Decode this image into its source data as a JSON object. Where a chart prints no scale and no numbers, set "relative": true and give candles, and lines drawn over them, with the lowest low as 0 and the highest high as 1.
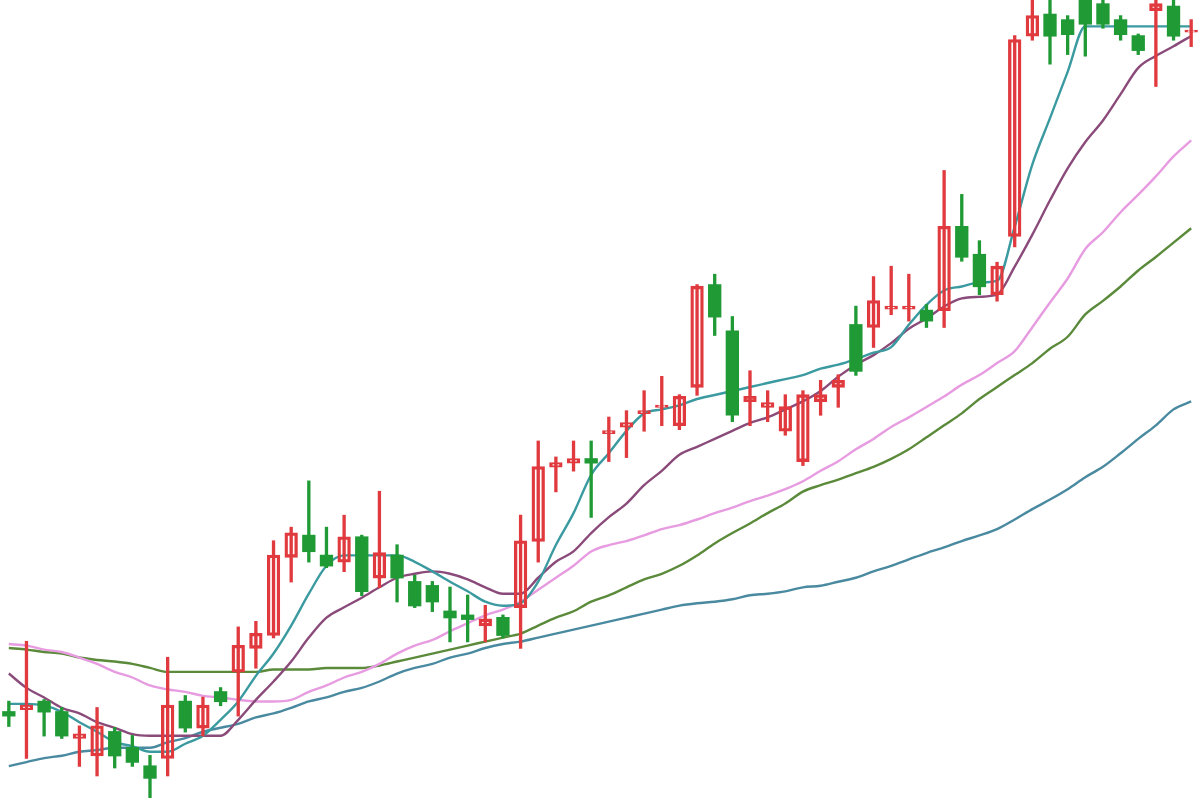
{
  "chart_data": {
    "type": "candlestick",
    "relative": true,
    "categories": [
      null,
      null,
      null,
      null,
      null,
      null,
      null,
      null,
      null,
      null,
      null,
      null,
      null,
      null,
      null,
      null,
      null,
      null,
      null,
      null,
      null,
      null,
      null,
      null,
      null,
      null,
      null,
      null,
      null,
      null,
      null,
      null,
      null,
      null,
      null,
      null,
      null,
      null,
      null,
      null,
      null,
      null,
      null,
      null,
      null,
      null,
      null,
      null,
      null,
      null,
      null,
      null,
      null,
      null,
      null,
      null,
      null,
      null,
      null,
      null,
      null,
      null,
      null,
      null,
      null,
      null,
      null,
      null
    ],
    "ohlc": [
      [
        0.108,
        0.121,
        0.09,
        0.103
      ],
      [
        0.111,
        0.196,
        0.05,
        0.116
      ],
      [
        0.121,
        0.123,
        0.078,
        0.108
      ],
      [
        0.108,
        0.113,
        0.075,
        0.078
      ],
      [
        0.075,
        0.09,
        0.04,
        0.08
      ],
      [
        0.053,
        0.113,
        0.028,
        0.09
      ],
      [
        0.083,
        0.088,
        0.038,
        0.053
      ],
      [
        0.063,
        0.078,
        0.04,
        0.045
      ],
      [
        0.04,
        0.053,
        0,
        0.025
      ],
      [
        0.05,
        0.176,
        0.028,
        0.116
      ],
      [
        0.121,
        0.128,
        0.083,
        0.088
      ],
      [
        0.088,
        0.126,
        0.078,
        0.116
      ],
      [
        0.133,
        0.138,
        0.116,
        0.121
      ],
      [
        0.158,
        0.214,
        0.103,
        0.191
      ],
      [
        0.188,
        0.221,
        0.163,
        0.206
      ],
      [
        0.204,
        0.322,
        0.201,
        0.304
      ],
      [
        0.302,
        0.339,
        0.271,
        0.332
      ],
      [
        0.329,
        0.397,
        0.296,
        0.309
      ],
      [
        0.304,
        0.339,
        0.289,
        0.291
      ],
      [
        0.296,
        0.354,
        0.284,
        0.327
      ],
      [
        0.327,
        0.329,
        0.254,
        0.259
      ],
      [
        0.276,
        0.384,
        0.264,
        0.307
      ],
      [
        0.304,
        0.317,
        0.246,
        0.276
      ],
      [
        0.271,
        0.279,
        0.239,
        0.241
      ],
      [
        0.266,
        0.271,
        0.234,
        0.246
      ],
      [
        0.234,
        0.264,
        0.196,
        0.226
      ],
      [
        0.229,
        0.254,
        0.196,
        0.224
      ],
      [
        0.216,
        0.241,
        0.196,
        0.224
      ],
      [
        0.226,
        0.229,
        0.201,
        0.204
      ],
      [
        0.239,
        0.354,
        0.188,
        0.322
      ],
      [
        0.322,
        0.447,
        0.296,
        0.415
      ],
      [
        0.415,
        0.427,
        0.384,
        0.42
      ],
      [
        0.42,
        0.447,
        0.41,
        0.425
      ],
      [
        0.425,
        0.447,
        0.352,
        0.42
      ],
      [
        0.457,
        0.477,
        0.422,
        0.46
      ],
      [
        0.465,
        0.485,
        0.427,
        0.47
      ],
      [
        0.482,
        0.51,
        0.46,
        0.485
      ],
      [
        0.49,
        0.528,
        0.467,
        0.492
      ],
      [
        0.467,
        0.505,
        0.462,
        0.503
      ],
      [
        0.515,
        0.643,
        0.505,
        0.641
      ],
      [
        0.643,
        0.656,
        0.58,
        0.603
      ],
      [
        0.585,
        0.603,
        0.472,
        0.48
      ],
      [
        0.497,
        0.535,
        0.467,
        0.503
      ],
      [
        0.49,
        0.51,
        0.472,
        0.495
      ],
      [
        0.46,
        0.505,
        0.455,
        0.49
      ],
      [
        0.422,
        0.51,
        0.417,
        0.505
      ],
      [
        0.497,
        0.523,
        0.48,
        0.505
      ],
      [
        0.515,
        0.53,
        0.49,
        0.523
      ],
      [
        0.593,
        0.616,
        0.53,
        0.535
      ],
      [
        0.59,
        0.653,
        0.565,
        0.623
      ],
      [
        0.613,
        0.666,
        0.606,
        0.616
      ],
      [
        0.613,
        0.656,
        0.598,
        0.616
      ],
      [
        0.611,
        0.618,
        0.59,
        0.598
      ],
      [
        0.611,
        0.786,
        0.59,
        0.716
      ],
      [
        0.716,
        0.756,
        0.673,
        0.678
      ],
      [
        0.681,
        0.698,
        0.631,
        0.641
      ],
      [
        0.631,
        0.671,
        0.623,
        0.666
      ],
      [
        0.704,
        0.955,
        0.691,
        0.95
      ],
      [
        0.955,
        1,
        0.95,
        0.98
      ],
      [
        0.982,
        1,
        0.92,
        0.955
      ],
      [
        0.975,
        0.98,
        0.932,
        0.957
      ],
      [
        1,
        1,
        0.93,
        0.97
      ],
      [
        0.995,
        1,
        0.965,
        0.97
      ],
      [
        0.975,
        0.98,
        0.95,
        0.957
      ],
      [
        0.955,
        0.957,
        0.932,
        0.937
      ],
      [
        0.987,
        1,
        0.892,
        0.995
      ],
      [
        0.992,
        1,
        0.95,
        0.955
      ],
      [
        0.96,
        0.975,
        0.942,
        0.962
      ]
    ],
    "colors": [
      "#1f9a35",
      "#e0393e",
      "#1f9a35",
      "#1f9a35",
      "#e0393e",
      "#e0393e",
      "#1f9a35",
      "#1f9a35",
      "#1f9a35",
      "#e0393e",
      "#1f9a35",
      "#e0393e",
      "#1f9a35",
      "#e0393e",
      "#e0393e",
      "#e0393e",
      "#e0393e",
      "#1f9a35",
      "#1f9a35",
      "#e0393e",
      "#1f9a35",
      "#e0393e",
      "#1f9a35",
      "#1f9a35",
      "#1f9a35",
      "#1f9a35",
      "#1f9a35",
      "#e0393e",
      "#1f9a35",
      "#e0393e",
      "#e0393e",
      "#e0393e",
      "#e0393e",
      "#1f9a35",
      "#e0393e",
      "#e0393e",
      "#e0393e",
      "#e0393e",
      "#e0393e",
      "#e0393e",
      "#1f9a35",
      "#1f9a35",
      "#e0393e",
      "#e0393e",
      "#e0393e",
      "#e0393e",
      "#e0393e",
      "#e0393e",
      "#1f9a35",
      "#e0393e",
      "#e0393e",
      "#e0393e",
      "#1f9a35",
      "#e0393e",
      "#1f9a35",
      "#1f9a35",
      "#e0393e",
      "#e0393e",
      "#e0393e",
      "#1f9a35",
      "#1f9a35",
      "#1f9a35",
      "#1f9a35",
      "#1f9a35",
      "#1f9a35",
      "#e0393e",
      "#1f9a35",
      "#e0393e"
    ],
    "series": [
      {
        "type": "line",
        "color": "#3a9aa0",
        "values": [
          0.118,
          0.118,
          0.116,
          0.108,
          0.095,
          0.083,
          0.07,
          0.065,
          0.058,
          0.058,
          0.068,
          0.078,
          0.098,
          0.121,
          0.153,
          0.181,
          0.216,
          0.256,
          0.291,
          0.304,
          0.304,
          0.304,
          0.304,
          0.296,
          0.284,
          0.271,
          0.259,
          0.246,
          0.241,
          0.244,
          0.271,
          0.317,
          0.357,
          0.405,
          0.432,
          0.46,
          0.482,
          0.487,
          0.492,
          0.5,
          0.505,
          0.51,
          0.515,
          0.52,
          0.525,
          0.53,
          0.538,
          0.543,
          0.55,
          0.558,
          0.565,
          0.593,
          0.618,
          0.636,
          0.641,
          0.646,
          0.648,
          0.716,
          0.794,
          0.852,
          0.91,
          0.967,
          0.967,
          0.967,
          0.967,
          0.967,
          0.967,
          0.967
        ]
      },
      {
        "type": "line",
        "color": "#8a4a7a",
        "values": [
          0.156,
          0.138,
          0.126,
          0.113,
          0.106,
          0.095,
          0.088,
          0.08,
          0.078,
          0.078,
          0.078,
          0.078,
          0.078,
          0.098,
          0.123,
          0.146,
          0.171,
          0.201,
          0.226,
          0.239,
          0.251,
          0.264,
          0.276,
          0.281,
          0.284,
          0.281,
          0.274,
          0.264,
          0.256,
          0.256,
          0.276,
          0.296,
          0.309,
          0.332,
          0.352,
          0.369,
          0.392,
          0.41,
          0.43,
          0.44,
          0.45,
          0.46,
          0.47,
          0.477,
          0.487,
          0.497,
          0.51,
          0.528,
          0.543,
          0.555,
          0.57,
          0.588,
          0.601,
          0.616,
          0.626,
          0.628,
          0.631,
          0.666,
          0.706,
          0.749,
          0.789,
          0.822,
          0.849,
          0.882,
          0.915,
          0.93,
          0.942,
          0.955
        ]
      },
      {
        "type": "line",
        "color": "#e79be0",
        "values": [
          0.193,
          0.191,
          0.186,
          0.183,
          0.176,
          0.168,
          0.158,
          0.151,
          0.141,
          0.136,
          0.133,
          0.128,
          0.126,
          0.123,
          0.121,
          0.121,
          0.123,
          0.133,
          0.141,
          0.151,
          0.158,
          0.168,
          0.181,
          0.191,
          0.198,
          0.209,
          0.219,
          0.229,
          0.236,
          0.246,
          0.261,
          0.276,
          0.291,
          0.309,
          0.317,
          0.322,
          0.329,
          0.337,
          0.342,
          0.349,
          0.357,
          0.364,
          0.372,
          0.379,
          0.387,
          0.397,
          0.41,
          0.422,
          0.437,
          0.45,
          0.465,
          0.477,
          0.49,
          0.503,
          0.518,
          0.53,
          0.545,
          0.56,
          0.59,
          0.621,
          0.651,
          0.688,
          0.709,
          0.734,
          0.756,
          0.779,
          0.804,
          0.824
        ]
      },
      {
        "type": "line",
        "color": "#5a8a3a",
        "values": [
          0.188,
          0.186,
          0.183,
          0.181,
          0.176,
          0.173,
          0.171,
          0.168,
          0.163,
          0.158,
          0.158,
          0.158,
          0.158,
          0.158,
          0.158,
          0.161,
          0.161,
          0.161,
          0.163,
          0.163,
          0.163,
          0.166,
          0.171,
          0.176,
          0.181,
          0.186,
          0.191,
          0.196,
          0.201,
          0.206,
          0.216,
          0.226,
          0.234,
          0.246,
          0.254,
          0.264,
          0.274,
          0.281,
          0.291,
          0.304,
          0.319,
          0.332,
          0.344,
          0.357,
          0.369,
          0.384,
          0.392,
          0.399,
          0.407,
          0.415,
          0.425,
          0.437,
          0.452,
          0.467,
          0.482,
          0.5,
          0.515,
          0.53,
          0.545,
          0.563,
          0.578,
          0.606,
          0.623,
          0.641,
          0.661,
          0.678,
          0.696,
          0.714
        ]
      },
      {
        "type": "line",
        "color": "#4a8aa0",
        "values": [
          0.04,
          0.045,
          0.05,
          0.053,
          0.058,
          0.06,
          0.063,
          0.063,
          0.063,
          0.07,
          0.075,
          0.083,
          0.088,
          0.093,
          0.101,
          0.106,
          0.113,
          0.121,
          0.126,
          0.133,
          0.138,
          0.146,
          0.156,
          0.163,
          0.168,
          0.176,
          0.181,
          0.188,
          0.193,
          0.196,
          0.201,
          0.206,
          0.211,
          0.216,
          0.221,
          0.226,
          0.231,
          0.236,
          0.241,
          0.244,
          0.246,
          0.249,
          0.254,
          0.256,
          0.259,
          0.264,
          0.266,
          0.271,
          0.276,
          0.284,
          0.291,
          0.299,
          0.307,
          0.314,
          0.322,
          0.329,
          0.337,
          0.349,
          0.362,
          0.374,
          0.387,
          0.402,
          0.415,
          0.432,
          0.45,
          0.467,
          0.487,
          0.497
        ]
      }
    ]
  }
}
